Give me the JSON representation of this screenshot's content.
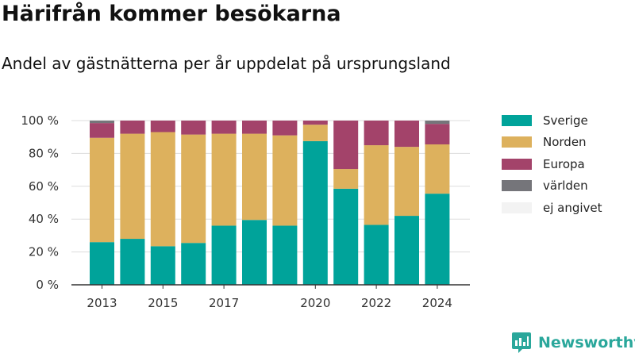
{
  "header": {
    "title": "Härifrån kommer besökarna",
    "subtitle": "Andel av gästnätterna per år uppdelat på ursprungsland"
  },
  "brand": {
    "name": "Newsworthy",
    "logo_icon": "newsworthy-logo-icon",
    "color": "#2aa79b"
  },
  "chart_data": {
    "type": "bar",
    "stacked": true,
    "title": "",
    "xlabel": "",
    "ylabel": "",
    "ylim": [
      0,
      100
    ],
    "y_unit": "%",
    "y_ticks": [
      0,
      20,
      40,
      60,
      80,
      100
    ],
    "x_tick_labels": [
      "2013",
      "2015",
      "2017",
      "2020",
      "2022",
      "2024"
    ],
    "categories": [
      "2013",
      "2014",
      "2015",
      "2016",
      "2017",
      "2018",
      "2019",
      "2020",
      "2021",
      "2022",
      "2023",
      "2024"
    ],
    "grid": true,
    "legend_position": "right",
    "series": [
      {
        "name": "Sverige",
        "color": "#00a39a",
        "values": [
          26,
          28,
          23.5,
          25.5,
          36,
          39.5,
          36,
          87.5,
          58.5,
          36.5,
          42,
          55.5
        ]
      },
      {
        "name": "Norden",
        "color": "#ddb15d",
        "values": [
          63.5,
          64,
          69.5,
          66,
          56,
          52.5,
          55,
          10,
          12,
          48.5,
          42,
          30
        ]
      },
      {
        "name": "Europa",
        "color": "#a3436a",
        "values": [
          9,
          8,
          7,
          8.5,
          8,
          8,
          9,
          2.5,
          29.5,
          15,
          16,
          12.5
        ]
      },
      {
        "name": "världen",
        "color": "#75757a",
        "values": [
          1.5,
          0,
          0,
          0,
          0,
          0,
          0,
          0,
          0,
          0,
          0,
          2
        ]
      },
      {
        "name": "ej angivet",
        "color": "#f3f3f3",
        "values": [
          0,
          0,
          0,
          0,
          0,
          0,
          0,
          0,
          0,
          0,
          0,
          0
        ]
      }
    ]
  }
}
